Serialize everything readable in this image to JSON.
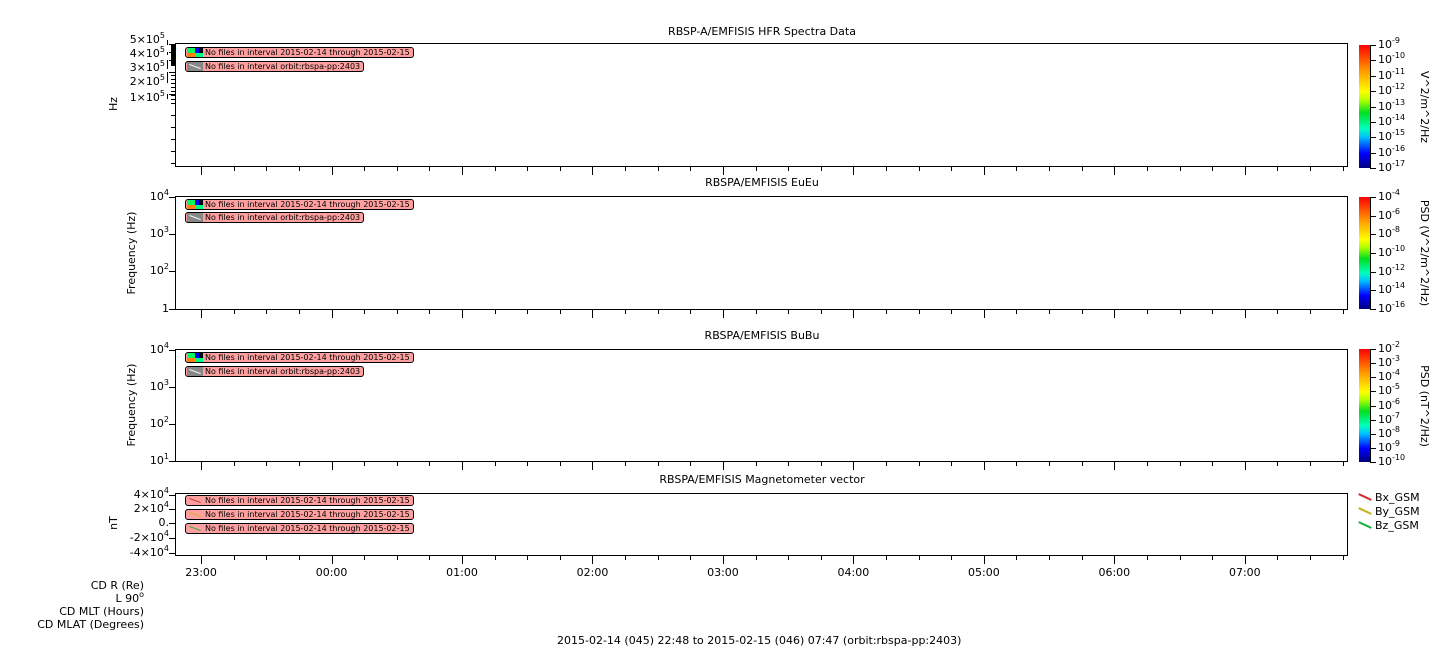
{
  "chart_data": {
    "type": "heatmap",
    "x_axis": {
      "tick_labels": [
        "23:00",
        "00:00",
        "01:00",
        "02:00",
        "03:00",
        "04:00",
        "05:00",
        "06:00",
        "07:00"
      ],
      "range": [
        "22:48",
        "07:47"
      ],
      "minor_tick_interval_minutes": 15
    },
    "footer": "2015-02-14 (045) 22:48 to 2015-02-15 (046) 07:47 (orbit:rbspa-pp:2403)",
    "ephemeris_labels": [
      {
        "text": "CD R (Re)"
      },
      {
        "text": "L 90",
        "sup": "o"
      },
      {
        "text": "CD MLT (Hours)"
      },
      {
        "text": "CD MLAT (Degrees)"
      }
    ],
    "panels": [
      {
        "title": "RBSP-A/EMFISIS  HFR Spectra Data",
        "ylabel": "Hz",
        "scale": "log",
        "yticks": [
          {
            "m": "5×10",
            "e": "5"
          },
          {
            "m": "4×10",
            "e": "5"
          },
          {
            "m": "3×10",
            "e": "5"
          },
          {
            "m": "2×10",
            "e": "5"
          },
          {
            "m": "1×10",
            "e": "5"
          }
        ],
        "colorbar": {
          "label": "V^2/m^2/Hz",
          "scale": "log",
          "ticks": [
            {
              "m": "10",
              "e": "-9"
            },
            {
              "m": "10",
              "e": "-10"
            },
            {
              "m": "10",
              "e": "-11"
            },
            {
              "m": "10",
              "e": "-12"
            },
            {
              "m": "10",
              "e": "-13"
            },
            {
              "m": "10",
              "e": "-14"
            },
            {
              "m": "10",
              "e": "-15"
            },
            {
              "m": "10",
              "e": "-16"
            },
            {
              "m": "10",
              "e": "-17"
            }
          ]
        },
        "messages": [
          "No files in interval 2015-02-14 through 2015-02-15",
          "No files in interval orbit:rbspa-pp:2403"
        ]
      },
      {
        "title": "RBSPA/EMFISIS  EuEu",
        "ylabel": "Frequency (Hz)",
        "scale": "log",
        "yticks": [
          {
            "m": "10",
            "e": "4"
          },
          {
            "m": "10",
            "e": "3"
          },
          {
            "m": "10",
            "e": "2"
          },
          {
            "m": "1",
            "e": ""
          }
        ],
        "colorbar": {
          "label": "PSD (V^2/m^2/Hz)",
          "scale": "log",
          "ticks": [
            {
              "m": "10",
              "e": "-4"
            },
            {
              "m": "10",
              "e": "-6"
            },
            {
              "m": "10",
              "e": "-8"
            },
            {
              "m": "10",
              "e": "-10"
            },
            {
              "m": "10",
              "e": "-12"
            },
            {
              "m": "10",
              "e": "-14"
            },
            {
              "m": "10",
              "e": "-16"
            }
          ]
        },
        "messages": [
          "No files in interval 2015-02-14 through 2015-02-15",
          "No files in interval orbit:rbspa-pp:2403"
        ]
      },
      {
        "title": "RBSPA/EMFISIS  BuBu",
        "ylabel": "Frequency (Hz)",
        "scale": "log",
        "yticks": [
          {
            "m": "10",
            "e": "4"
          },
          {
            "m": "10",
            "e": "3"
          },
          {
            "m": "10",
            "e": "2"
          },
          {
            "m": "10",
            "e": "1"
          }
        ],
        "colorbar": {
          "label": "PSD (nT^2/Hz)",
          "scale": "log",
          "ticks": [
            {
              "m": "10",
              "e": "-2"
            },
            {
              "m": "10",
              "e": "-3"
            },
            {
              "m": "10",
              "e": "-4"
            },
            {
              "m": "10",
              "e": "-5"
            },
            {
              "m": "10",
              "e": "-6"
            },
            {
              "m": "10",
              "e": "-7"
            },
            {
              "m": "10",
              "e": "-8"
            },
            {
              "m": "10",
              "e": "-9"
            },
            {
              "m": "10",
              "e": "-10"
            }
          ]
        },
        "messages": [
          "No files in interval 2015-02-14 through 2015-02-15",
          "No files in interval orbit:rbspa-pp:2403"
        ]
      },
      {
        "title": "RBSPA/EMFISIS  Magnetometer vector",
        "ylabel": "nT",
        "scale": "linear",
        "ylim": [
          -40000,
          40000
        ],
        "yticks": [
          {
            "m": "4×10",
            "e": "4"
          },
          {
            "m": "2×10",
            "e": "4"
          },
          {
            "m": "0.",
            "e": ""
          },
          {
            "m": "-2×10",
            "e": "4"
          },
          {
            "m": "-4×10",
            "e": "4"
          }
        ],
        "legend": [
          {
            "name": "Bx_GSM",
            "color": "#d03030"
          },
          {
            "name": "By_GSM",
            "color": "#c8b020"
          },
          {
            "name": "Bz_GSM",
            "color": "#20b040"
          }
        ],
        "messages": [
          "No files in interval 2015-02-14 through 2015-02-15",
          "No files in interval 2015-02-14 through 2015-02-15",
          "No files in interval 2015-02-14 through 2015-02-15"
        ]
      }
    ]
  }
}
